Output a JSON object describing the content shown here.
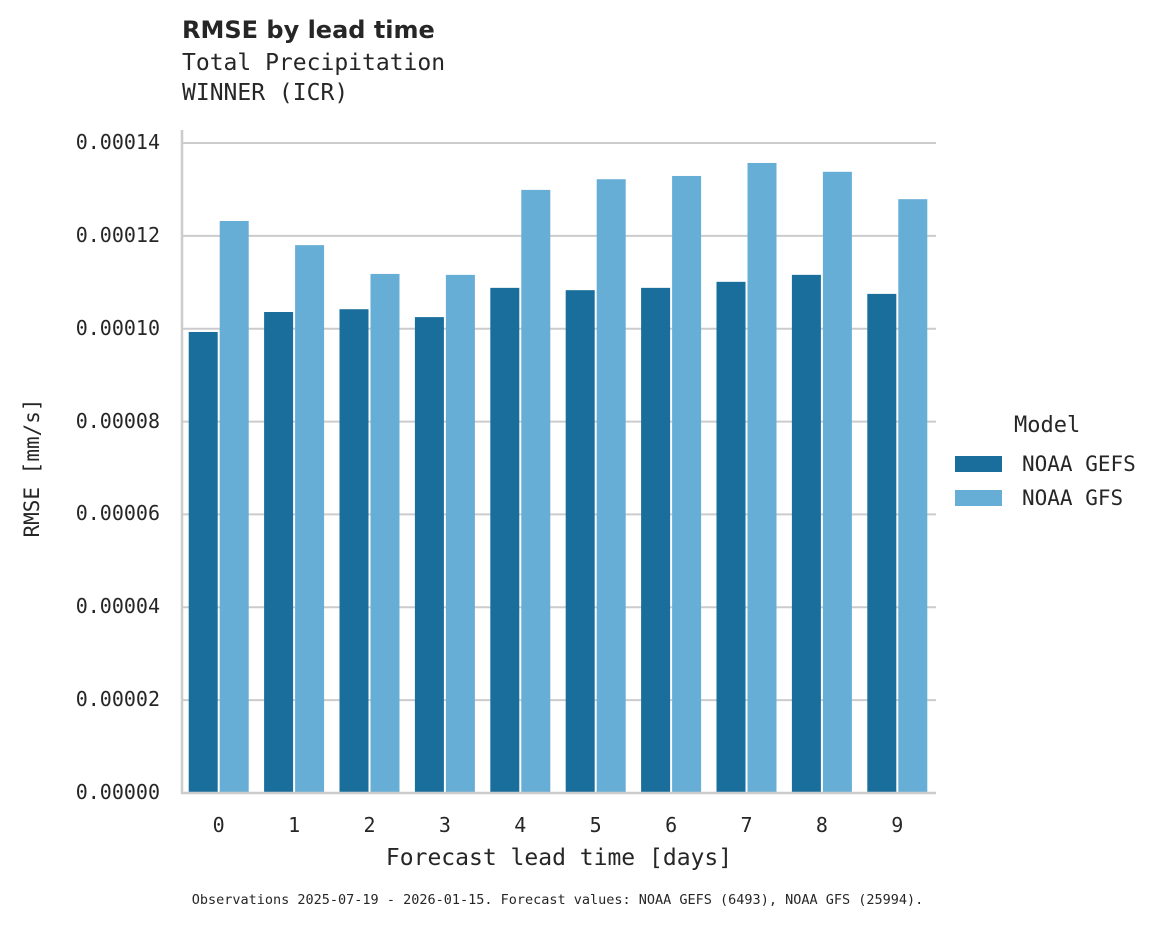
{
  "header": {
    "title": "RMSE by lead time",
    "subtitle_line1": "Total Precipitation",
    "subtitle_line2": "WINNER (ICR)"
  },
  "axes": {
    "xlabel": "Forecast lead time [days]",
    "ylabel": "RMSE [mm/s]",
    "yticks": [
      "0.00000",
      "0.00002",
      "0.00004",
      "0.00006",
      "0.00008",
      "0.00010",
      "0.00012",
      "0.00014"
    ],
    "xticks": [
      "0",
      "1",
      "2",
      "3",
      "4",
      "5",
      "6",
      "7",
      "8",
      "9"
    ]
  },
  "legend": {
    "title": "Model",
    "items": [
      {
        "label": "NOAA GEFS",
        "color": "#1a6e9c"
      },
      {
        "label": "NOAA GFS",
        "color": "#67aed6"
      }
    ]
  },
  "footnote": "Observations 2025-07-19 - 2026-01-15. Forecast values: NOAA GEFS (6493), NOAA GFS (25994).",
  "chart_data": {
    "type": "bar",
    "title": "RMSE by lead time",
    "subtitle": "Total Precipitation / WINNER (ICR)",
    "xlabel": "Forecast lead time [days]",
    "ylabel": "RMSE [mm/s]",
    "categories": [
      0,
      1,
      2,
      3,
      4,
      5,
      6,
      7,
      8,
      9
    ],
    "series": [
      {
        "name": "NOAA GEFS",
        "color": "#1a6e9c",
        "values": [
          9.93e-05,
          0.0001036,
          0.0001042,
          0.0001025,
          0.0001088,
          0.0001083,
          0.0001088,
          0.0001101,
          0.0001116,
          0.0001075
        ]
      },
      {
        "name": "NOAA GFS",
        "color": "#67aed6",
        "values": [
          0.0001232,
          0.000118,
          0.0001118,
          0.0001116,
          0.0001299,
          0.0001322,
          0.0001329,
          0.0001357,
          0.0001338,
          0.0001279
        ]
      }
    ],
    "ylim": [
      0,
      0.00014
    ],
    "grid": "y",
    "legend_position": "right"
  }
}
